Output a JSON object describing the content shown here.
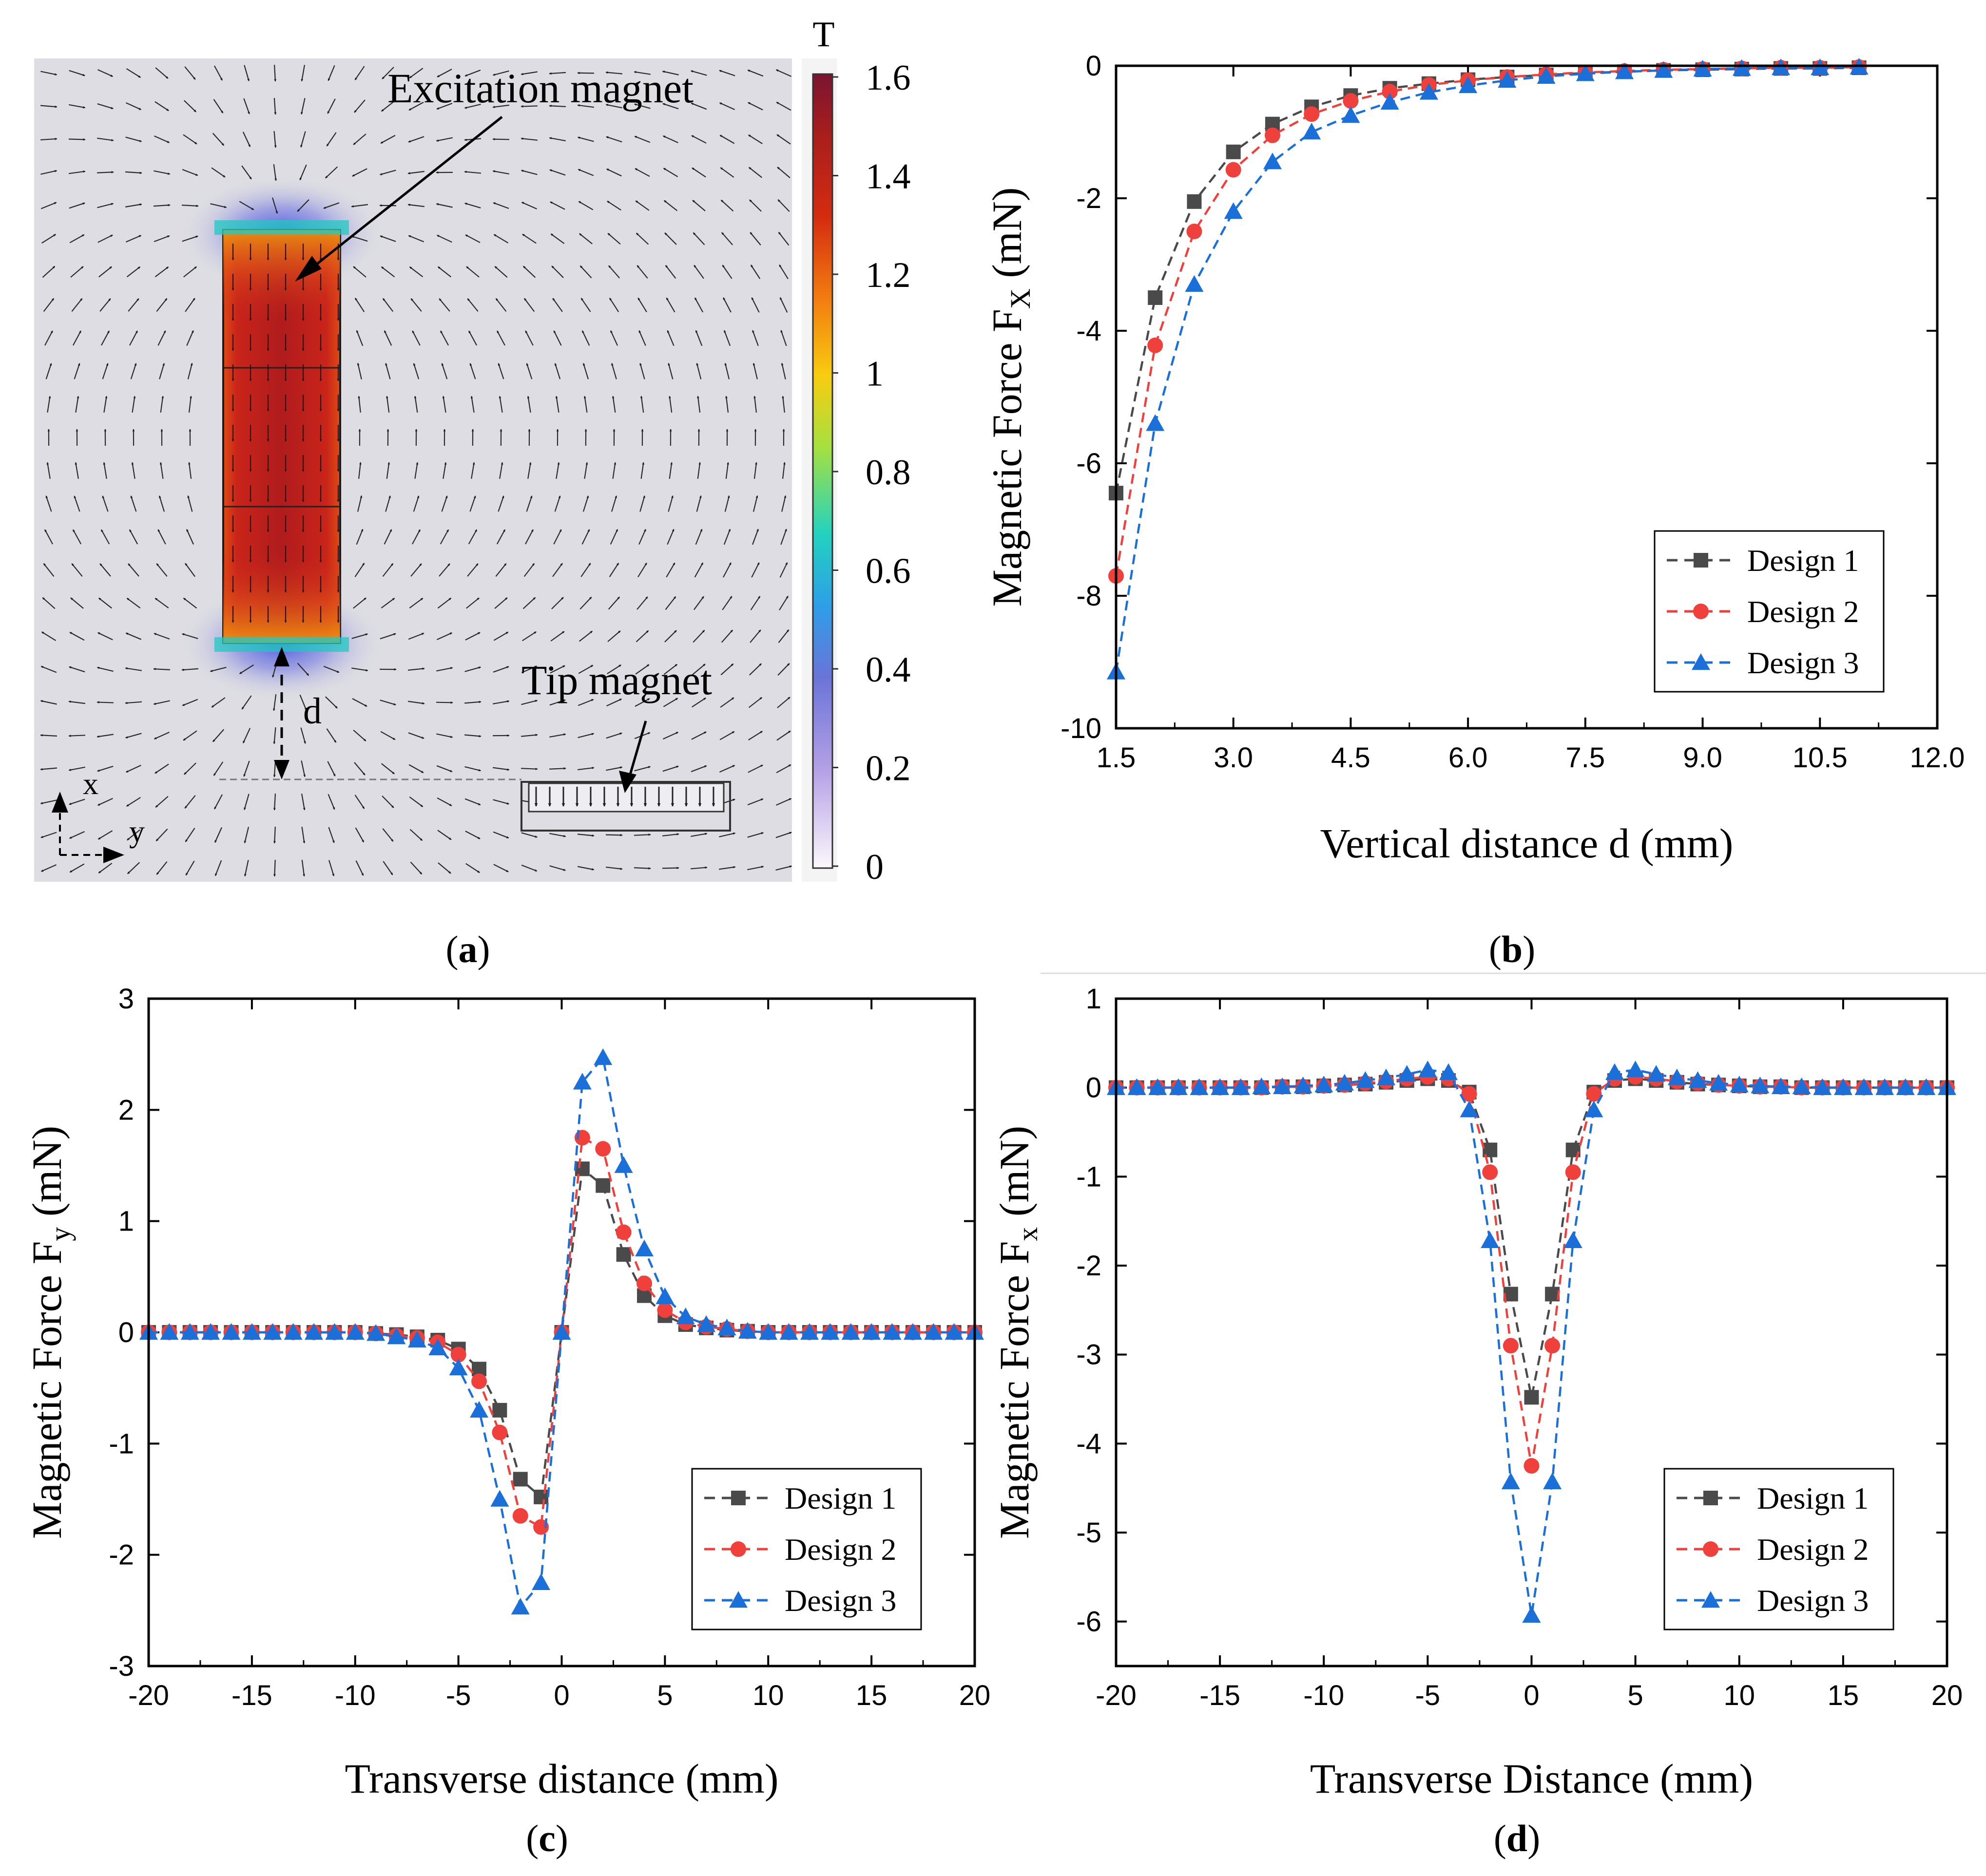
{
  "panel_a": {
    "label_prefix": "(",
    "label_letter": "a",
    "label_suffix": ")",
    "colorbar": {
      "unit": "T",
      "ticks": [
        "1.6",
        "1.4",
        "1.2",
        "1",
        "0.8",
        "0.6",
        "0.4",
        "0.2",
        "0"
      ],
      "colors": [
        "#fbf8fc",
        "#b7a2e6",
        "#6a74d8",
        "#2e9ee8",
        "#22d2c0",
        "#a6e040",
        "#f8cc10",
        "#f27a10",
        "#d42c10",
        "#aa1e1c",
        "#7a1430"
      ]
    },
    "annotations": {
      "excitation_magnet": "Excitation magnet",
      "tip_magnet": "Tip magnet",
      "distance": "d",
      "axis_x": "x",
      "axis_y": "y"
    },
    "colors": {
      "background": "#dddde3",
      "magnet_field": "#c8241a",
      "vectors": "#2a2a2a"
    }
  },
  "chart_data": [
    {
      "id": "b",
      "type": "line",
      "panel_label_letter": "b",
      "title": "",
      "xlabel": "Vertical distance d (mm)",
      "ylabel_main": "Magnetic Force F",
      "ylabel_sub": "X",
      "ylabel_unit": " (mN)",
      "xlim": [
        1.5,
        12.0
      ],
      "ylim": [
        -10,
        0
      ],
      "xticks": [
        1.5,
        3.0,
        4.5,
        6.0,
        7.5,
        9.0,
        10.5,
        12.0
      ],
      "xtick_labels": [
        "1.5",
        "3.0",
        "4.5",
        "6.0",
        "7.5",
        "9.0",
        "10.5",
        "12.0"
      ],
      "yticks": [
        0,
        -2,
        -4,
        -6,
        -8,
        -10
      ],
      "ytick_labels": [
        "0",
        "-2",
        "-4",
        "-6",
        "-8",
        "-10"
      ],
      "legend_position": "bottom-right",
      "x": [
        1.5,
        2.0,
        2.5,
        3.0,
        3.5,
        4.0,
        4.5,
        5.0,
        5.5,
        6.0,
        6.5,
        7.0,
        7.5,
        8.0,
        8.5,
        9.0,
        9.5,
        10.0,
        10.5,
        11.0
      ],
      "series": [
        {
          "name": "Design 1",
          "marker": "square",
          "color": "#4a4a4a",
          "values": [
            -6.45,
            -3.5,
            -2.05,
            -1.3,
            -0.88,
            -0.62,
            -0.45,
            -0.34,
            -0.27,
            -0.21,
            -0.17,
            -0.14,
            -0.11,
            -0.09,
            -0.07,
            -0.06,
            -0.05,
            -0.04,
            -0.04,
            -0.03
          ]
        },
        {
          "name": "Design 2",
          "marker": "circle",
          "color": "#f0403c",
          "values": [
            -7.7,
            -4.22,
            -2.5,
            -1.57,
            -1.05,
            -0.73,
            -0.53,
            -0.39,
            -0.29,
            -0.22,
            -0.17,
            -0.13,
            -0.1,
            -0.08,
            -0.06,
            -0.05,
            -0.04,
            -0.03,
            -0.03,
            -0.02
          ]
        },
        {
          "name": "Design 3",
          "marker": "triangle",
          "color": "#1a6fd8",
          "values": [
            -9.15,
            -5.4,
            -3.3,
            -2.2,
            -1.45,
            -1.0,
            -0.75,
            -0.55,
            -0.4,
            -0.3,
            -0.22,
            -0.16,
            -0.12,
            -0.09,
            -0.07,
            -0.05,
            -0.04,
            -0.03,
            -0.03,
            -0.02
          ]
        }
      ]
    },
    {
      "id": "c",
      "type": "line",
      "panel_label_letter": "c",
      "title": "",
      "xlabel": "Transverse distance (mm)",
      "ylabel_main": "Magnetic Force F",
      "ylabel_sub": "y",
      "ylabel_unit": " (mN)",
      "xlim": [
        -20,
        20
      ],
      "ylim": [
        -3,
        3
      ],
      "xticks": [
        -20,
        -15,
        -10,
        -5,
        0,
        5,
        10,
        15,
        20
      ],
      "xtick_labels": [
        "-20",
        "-15",
        "-10",
        "-5",
        "0",
        "5",
        "10",
        "15",
        "20"
      ],
      "yticks": [
        3,
        2,
        1,
        0,
        -1,
        -2,
        -3
      ],
      "ytick_labels": [
        "3",
        "2",
        "1",
        "0",
        "-1",
        "-2",
        "-3"
      ],
      "legend_position": "bottom-right",
      "x": [
        -20,
        -19,
        -18,
        -17,
        -16,
        -15,
        -14,
        -13,
        -12,
        -11,
        -10,
        -9,
        -8,
        -7,
        -6,
        -5,
        -4,
        -3,
        -2,
        -1,
        0,
        1,
        2,
        3,
        4,
        5,
        6,
        7,
        8,
        9,
        10,
        11,
        12,
        13,
        14,
        15,
        16,
        17,
        18,
        19,
        20
      ],
      "series": [
        {
          "name": "Design 1",
          "marker": "square",
          "color": "#4a4a4a",
          "values": [
            0,
            0,
            0,
            0,
            0,
            0,
            0,
            0,
            0,
            0,
            0,
            -0.01,
            -0.02,
            -0.04,
            -0.07,
            -0.15,
            -0.33,
            -0.7,
            -1.32,
            -1.48,
            0,
            1.47,
            1.32,
            0.7,
            0.33,
            0.15,
            0.07,
            0.04,
            0.02,
            0.01,
            0,
            0,
            0,
            0,
            0,
            0,
            0,
            0,
            0,
            0,
            0
          ]
        },
        {
          "name": "Design 2",
          "marker": "circle",
          "color": "#f0403c",
          "values": [
            0,
            0,
            0,
            0,
            0,
            0,
            0,
            0,
            0,
            0,
            0,
            -0.01,
            -0.03,
            -0.05,
            -0.09,
            -0.2,
            -0.44,
            -0.9,
            -1.65,
            -1.75,
            0,
            1.75,
            1.65,
            0.9,
            0.44,
            0.2,
            0.09,
            0.05,
            0.03,
            0.01,
            0,
            0,
            0,
            0,
            0,
            0,
            0,
            0,
            0,
            0,
            0
          ]
        },
        {
          "name": "Design 3",
          "marker": "triangle",
          "color": "#1a6fd8",
          "values": [
            0,
            0,
            0,
            0,
            0,
            0,
            0,
            0,
            0,
            0,
            0,
            -0.01,
            -0.04,
            -0.07,
            -0.14,
            -0.32,
            -0.7,
            -1.5,
            -2.47,
            -2.25,
            0,
            2.25,
            2.47,
            1.5,
            0.75,
            0.32,
            0.14,
            0.07,
            0.04,
            0.01,
            0,
            0,
            0,
            0,
            0,
            0,
            0,
            0,
            0,
            0,
            0
          ]
        }
      ]
    },
    {
      "id": "d",
      "type": "line",
      "panel_label_letter": "d",
      "title": "",
      "xlabel": "Transverse Distance (mm)",
      "ylabel_main": "Magnetic Force F",
      "ylabel_sub": "x",
      "ylabel_unit": " (mN)",
      "xlim": [
        -20,
        20
      ],
      "ylim": [
        -6.5,
        1
      ],
      "xticks": [
        -20,
        -15,
        -10,
        -5,
        0,
        5,
        10,
        15,
        20
      ],
      "xtick_labels": [
        "-20",
        "-15",
        "-10",
        "-5",
        "0",
        "5",
        "10",
        "15",
        "20"
      ],
      "yticks": [
        1,
        0,
        -1,
        -2,
        -3,
        -4,
        -5,
        -6
      ],
      "ytick_labels": [
        "1",
        "0",
        "-1",
        "-2",
        "-3",
        "-4",
        "-5",
        "-6"
      ],
      "legend_position": "bottom-right",
      "x": [
        -20,
        -19,
        -18,
        -17,
        -16,
        -15,
        -14,
        -13,
        -12,
        -11,
        -10,
        -9,
        -8,
        -7,
        -6,
        -5,
        -4,
        -3,
        -2,
        -1,
        0,
        1,
        2,
        3,
        4,
        5,
        6,
        7,
        8,
        9,
        10,
        11,
        12,
        13,
        14,
        15,
        16,
        17,
        18,
        19,
        20
      ],
      "series": [
        {
          "name": "Design 1",
          "marker": "square",
          "color": "#4a4a4a",
          "values": [
            0,
            0,
            0,
            0,
            0,
            0,
            0,
            0,
            0.01,
            0.01,
            0.02,
            0.03,
            0.04,
            0.06,
            0.08,
            0.1,
            0.08,
            -0.05,
            -0.7,
            -2.32,
            -3.48,
            -2.32,
            -0.7,
            -0.05,
            0.08,
            0.1,
            0.08,
            0.06,
            0.04,
            0.03,
            0.02,
            0.01,
            0.01,
            0,
            0,
            0,
            0,
            0,
            0,
            0,
            0
          ]
        },
        {
          "name": "Design 2",
          "marker": "circle",
          "color": "#f0403c",
          "values": [
            0,
            0,
            0,
            0,
            0,
            0,
            0,
            0,
            0.01,
            0.01,
            0.02,
            0.03,
            0.05,
            0.07,
            0.1,
            0.12,
            0.1,
            -0.07,
            -0.95,
            -2.9,
            -4.25,
            -2.9,
            -0.95,
            -0.07,
            0.1,
            0.12,
            0.1,
            0.07,
            0.05,
            0.03,
            0.02,
            0.01,
            0.01,
            0,
            0,
            0,
            0,
            0,
            0,
            0,
            0
          ]
        },
        {
          "name": "Design 3",
          "marker": "triangle",
          "color": "#1a6fd8",
          "values": [
            0,
            0,
            0,
            0,
            0,
            0,
            0,
            0.01,
            0.01,
            0.02,
            0.03,
            0.05,
            0.08,
            0.11,
            0.15,
            0.2,
            0.17,
            -0.25,
            -1.72,
            -4.43,
            -5.93,
            -4.43,
            -1.72,
            -0.25,
            0.17,
            0.2,
            0.15,
            0.11,
            0.08,
            0.05,
            0.03,
            0.02,
            0.01,
            0.01,
            0,
            0,
            0,
            0,
            0,
            0,
            0
          ]
        }
      ]
    }
  ]
}
